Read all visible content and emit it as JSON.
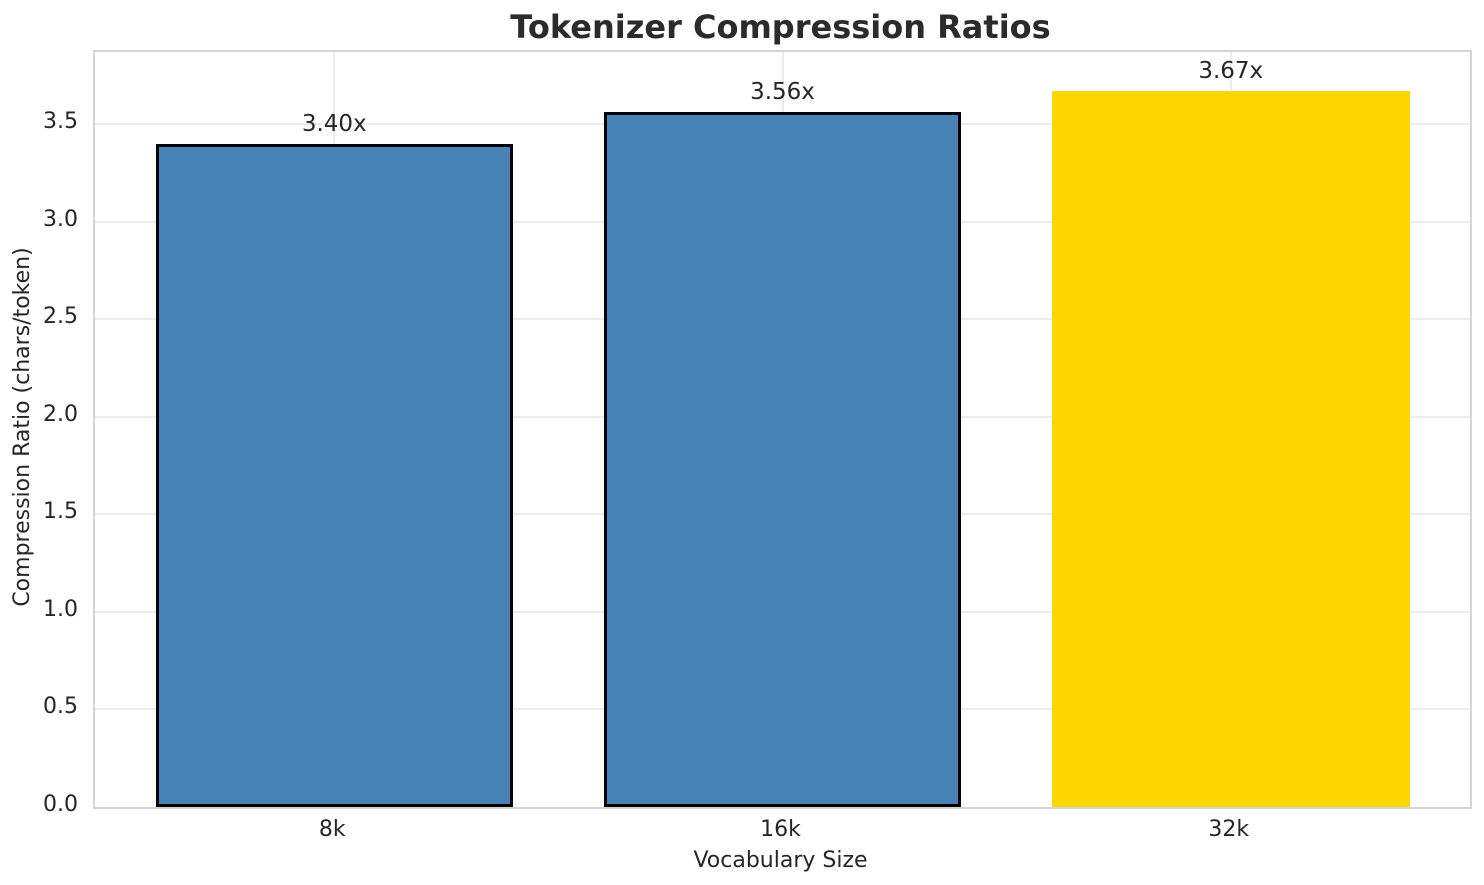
{
  "chart_data": {
    "type": "bar",
    "title": "Tokenizer Compression Ratios",
    "xlabel": "Vocabulary Size",
    "ylabel": "Compression Ratio (chars/token)",
    "categories": [
      "8k",
      "16k",
      "32k"
    ],
    "values": [
      3.4,
      3.56,
      3.67
    ],
    "bar_labels": [
      "3.40x",
      "3.56x",
      "3.67x"
    ],
    "bar_colors": [
      "#4682b4",
      "#4682b4",
      "#ffd700"
    ],
    "bar_edge_colors": [
      "#000000",
      "#000000",
      "none"
    ],
    "ytick_labels": [
      "0.0",
      "0.5",
      "1.0",
      "1.5",
      "2.0",
      "2.5",
      "3.0",
      "3.5"
    ],
    "yticks": [
      0.0,
      0.5,
      1.0,
      1.5,
      2.0,
      2.5,
      3.0,
      3.5
    ],
    "ylim": [
      0,
      3.87
    ],
    "grid": true,
    "legend_position": "none",
    "colors": {
      "default_bar": "#4682b4",
      "highlight_bar": "#ffd700",
      "bar_edge": "#000000",
      "gridline": "#ececec",
      "spine": "#d4d4d4",
      "text": "#262626",
      "title_text": "#2b2b2b",
      "background": "#ffffff"
    }
  }
}
